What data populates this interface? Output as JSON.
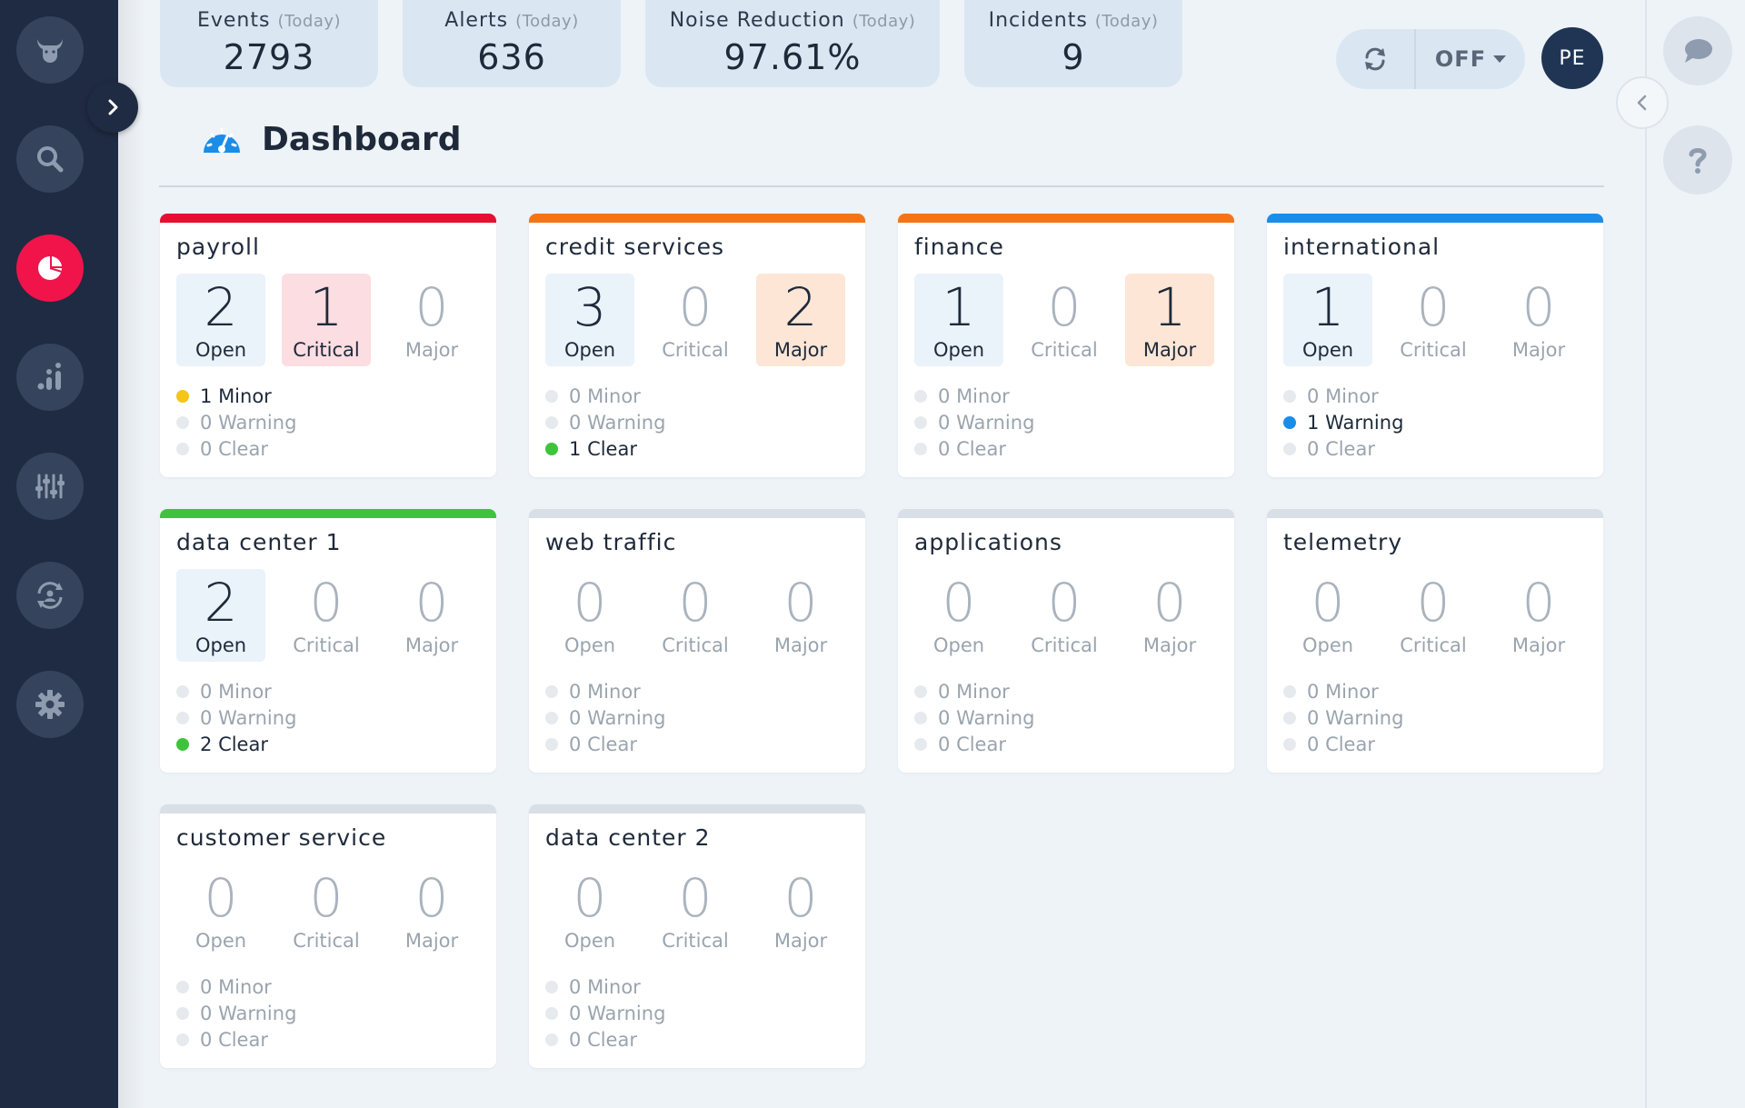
{
  "stats": [
    {
      "label": "Events",
      "qualifier": "(Today)",
      "value": "2793"
    },
    {
      "label": "Alerts",
      "qualifier": "(Today)",
      "value": "636"
    },
    {
      "label": "Noise Reduction",
      "qualifier": "(Today)",
      "value": "97.61%"
    },
    {
      "label": "Incidents",
      "qualifier": "(Today)",
      "value": "9"
    }
  ],
  "header": {
    "refresh_icon": "refresh-icon",
    "auto_refresh_label": "OFF",
    "avatar_initials": "PE"
  },
  "page": {
    "title": "Dashboard",
    "title_icon": "speedometer-icon"
  },
  "sidebar": {
    "items": [
      {
        "name": "bull-logo-icon"
      },
      {
        "name": "search-icon"
      },
      {
        "name": "dashboard-pie-icon",
        "active": true
      },
      {
        "name": "analytics-icon"
      },
      {
        "name": "sliders-icon"
      },
      {
        "name": "sync-icon"
      },
      {
        "name": "gear-icon"
      }
    ]
  },
  "colors": {
    "critical": "#e5102f",
    "major": "#f57415",
    "warning": "#1a8de8",
    "clear": "#3dc43b",
    "minor": "#f5c518",
    "neutral": "#d8dfe6",
    "sidebar": "#1f2b42",
    "active": "#f0144b"
  },
  "metric_labels": {
    "open": "Open",
    "critical": "Critical",
    "major": "Major"
  },
  "severity_labels": {
    "minor": "Minor",
    "warning": "Warning",
    "clear": "Clear"
  },
  "cards": [
    {
      "title": "payroll",
      "bar": "critical",
      "open": 2,
      "critical": 1,
      "major": 0,
      "minor": 1,
      "warning": 0,
      "clear": 0
    },
    {
      "title": "credit services",
      "bar": "major",
      "open": 3,
      "critical": 0,
      "major": 2,
      "minor": 0,
      "warning": 0,
      "clear": 1
    },
    {
      "title": "finance",
      "bar": "major",
      "open": 1,
      "critical": 0,
      "major": 1,
      "minor": 0,
      "warning": 0,
      "clear": 0
    },
    {
      "title": "international",
      "bar": "warning",
      "open": 1,
      "critical": 0,
      "major": 0,
      "minor": 0,
      "warning": 1,
      "clear": 0
    },
    {
      "title": "data center 1",
      "bar": "clear",
      "open": 2,
      "critical": 0,
      "major": 0,
      "minor": 0,
      "warning": 0,
      "clear": 2
    },
    {
      "title": "web traffic",
      "bar": "neutral",
      "open": 0,
      "critical": 0,
      "major": 0,
      "minor": 0,
      "warning": 0,
      "clear": 0
    },
    {
      "title": "applications",
      "bar": "neutral",
      "open": 0,
      "critical": 0,
      "major": 0,
      "minor": 0,
      "warning": 0,
      "clear": 0
    },
    {
      "title": "telemetry",
      "bar": "neutral",
      "open": 0,
      "critical": 0,
      "major": 0,
      "minor": 0,
      "warning": 0,
      "clear": 0
    },
    {
      "title": "customer service",
      "bar": "neutral",
      "open": 0,
      "critical": 0,
      "major": 0,
      "minor": 0,
      "warning": 0,
      "clear": 0
    },
    {
      "title": "data center 2",
      "bar": "neutral",
      "open": 0,
      "critical": 0,
      "major": 0,
      "minor": 0,
      "warning": 0,
      "clear": 0
    }
  ]
}
